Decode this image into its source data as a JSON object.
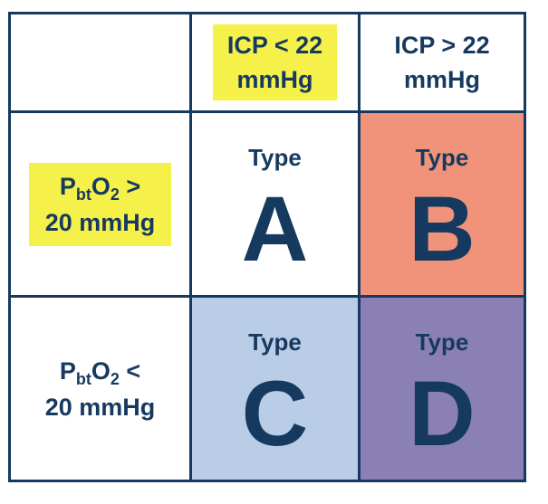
{
  "colors": {
    "border": "#163a5f",
    "text": "#163a5f",
    "highlight": "#f5f04a",
    "type_a_bg": "#ffffff",
    "type_b_bg": "#f0937a",
    "type_c_bg": "#b9cde6",
    "type_d_bg": "#8a80b5"
  },
  "columns": [
    {
      "text_line1": "ICP < 22",
      "text_line2": "mmHg",
      "highlighted": true
    },
    {
      "text_line1": "ICP > 22",
      "text_line2": "mmHg",
      "highlighted": false
    }
  ],
  "rows": [
    {
      "symbol_main": "P",
      "symbol_sub": "bt",
      "symbol_o": "O",
      "symbol_sub2": "2",
      "operator": " >",
      "line2": "20 mmHg",
      "highlighted": true
    },
    {
      "symbol_main": "P",
      "symbol_sub": "bt",
      "symbol_o": "O",
      "symbol_sub2": "2",
      "operator": " <",
      "line2": "20 mmHg",
      "highlighted": false
    }
  ],
  "cells": [
    {
      "word": "Type",
      "letter": "A"
    },
    {
      "word": "Type",
      "letter": "B"
    },
    {
      "word": "Type",
      "letter": "C"
    },
    {
      "word": "Type",
      "letter": "D"
    }
  ]
}
